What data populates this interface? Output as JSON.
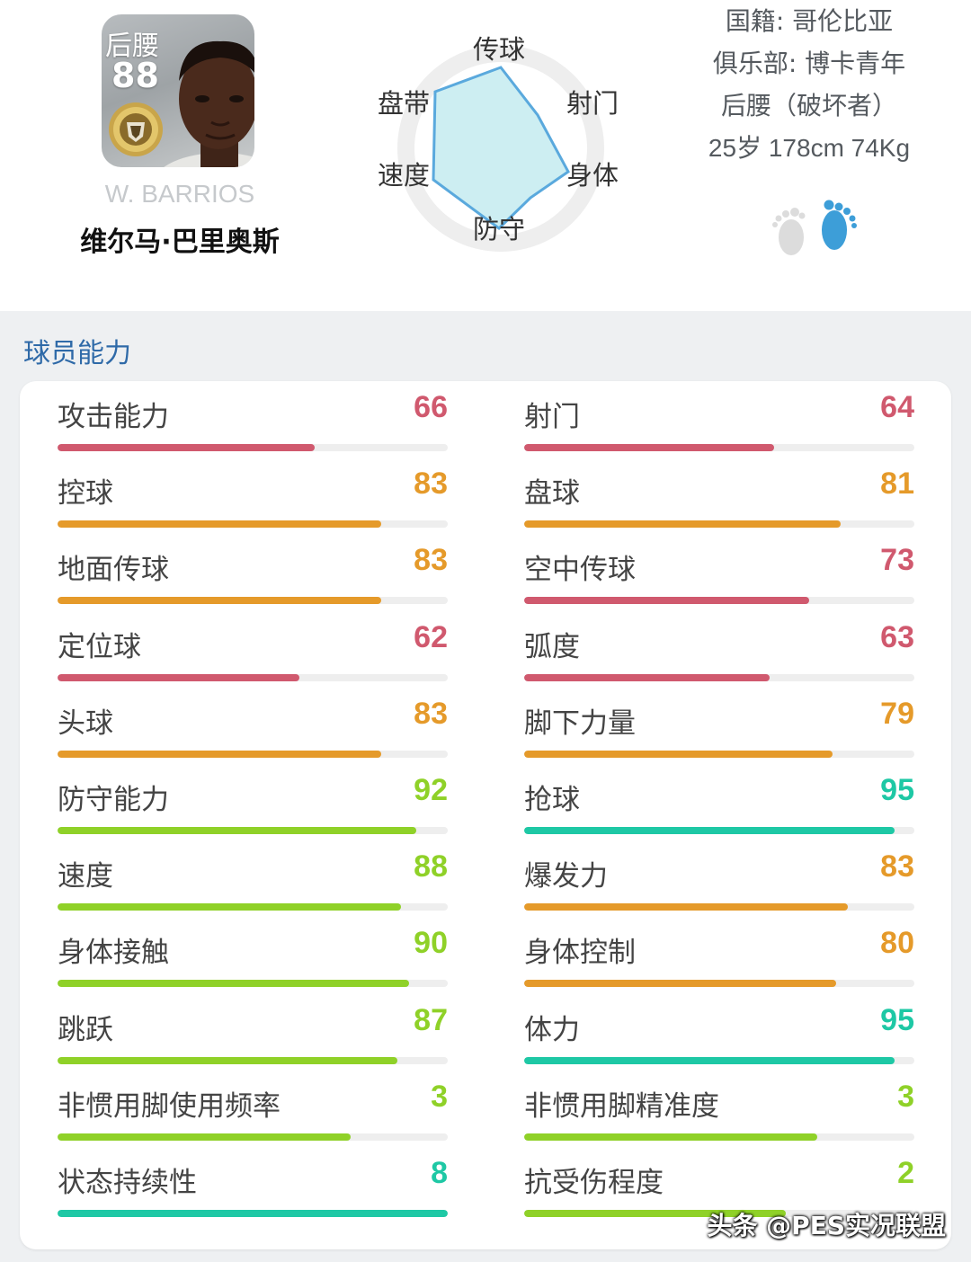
{
  "player": {
    "position": "后腰",
    "overall": "88",
    "name_en": "W. BARRIOS",
    "name_cn": "维尔马·巴里奥斯"
  },
  "radar": {
    "labels": {
      "passing": "传球",
      "shooting": "射门",
      "physical": "身体",
      "defense": "防守",
      "speed": "速度",
      "dribbling": "盘带"
    },
    "fill_color": "#cdeef2",
    "stroke_color": "#5aa9dd"
  },
  "info": {
    "nationality": "国籍: 哥伦比亚",
    "club": "俱乐部: 博卡青年",
    "playstyle": "后腰（破坏者）",
    "bio": "25岁 178cm 74Kg"
  },
  "section_title": "球员能力",
  "abilities_left": [
    {
      "label": "攻击能力",
      "value": "66",
      "fraction": 0.66,
      "color": "#d0596e"
    },
    {
      "label": "控球",
      "value": "83",
      "fraction": 0.83,
      "color": "#e59a2a"
    },
    {
      "label": "地面传球",
      "value": "83",
      "fraction": 0.83,
      "color": "#e59a2a"
    },
    {
      "label": "定位球",
      "value": "62",
      "fraction": 0.62,
      "color": "#d0596e"
    },
    {
      "label": "头球",
      "value": "83",
      "fraction": 0.83,
      "color": "#e59a2a"
    },
    {
      "label": "防守能力",
      "value": "92",
      "fraction": 0.92,
      "color": "#8fd128"
    },
    {
      "label": "速度",
      "value": "88",
      "fraction": 0.88,
      "color": "#8fd128"
    },
    {
      "label": "身体接触",
      "value": "90",
      "fraction": 0.9,
      "color": "#8fd128"
    },
    {
      "label": "跳跃",
      "value": "87",
      "fraction": 0.87,
      "color": "#8fd128"
    },
    {
      "label": "非惯用脚使用频率",
      "value": "3",
      "fraction": 0.75,
      "color": "#8fd128"
    },
    {
      "label": "状态持续性",
      "value": "8",
      "fraction": 1.0,
      "color": "#1ec8a5"
    }
  ],
  "abilities_right": [
    {
      "label": "射门",
      "value": "64",
      "fraction": 0.64,
      "color": "#d0596e"
    },
    {
      "label": "盘球",
      "value": "81",
      "fraction": 0.81,
      "color": "#e59a2a"
    },
    {
      "label": "空中传球",
      "value": "73",
      "fraction": 0.73,
      "color": "#d0596e"
    },
    {
      "label": "弧度",
      "value": "63",
      "fraction": 0.63,
      "color": "#d0596e"
    },
    {
      "label": "脚下力量",
      "value": "79",
      "fraction": 0.79,
      "color": "#e59a2a"
    },
    {
      "label": "抢球",
      "value": "95",
      "fraction": 0.95,
      "color": "#1ec8a5"
    },
    {
      "label": "爆发力",
      "value": "83",
      "fraction": 0.83,
      "color": "#e59a2a"
    },
    {
      "label": "身体控制",
      "value": "80",
      "fraction": 0.8,
      "color": "#e59a2a"
    },
    {
      "label": "体力",
      "value": "95",
      "fraction": 0.95,
      "color": "#1ec8a5"
    },
    {
      "label": "非惯用脚精准度",
      "value": "3",
      "fraction": 0.75,
      "color": "#8fd128"
    },
    {
      "label": "抗受伤程度",
      "value": "2",
      "fraction": 0.67,
      "color": "#8fd128"
    }
  ],
  "watermark": "头条 @PES实况联盟"
}
